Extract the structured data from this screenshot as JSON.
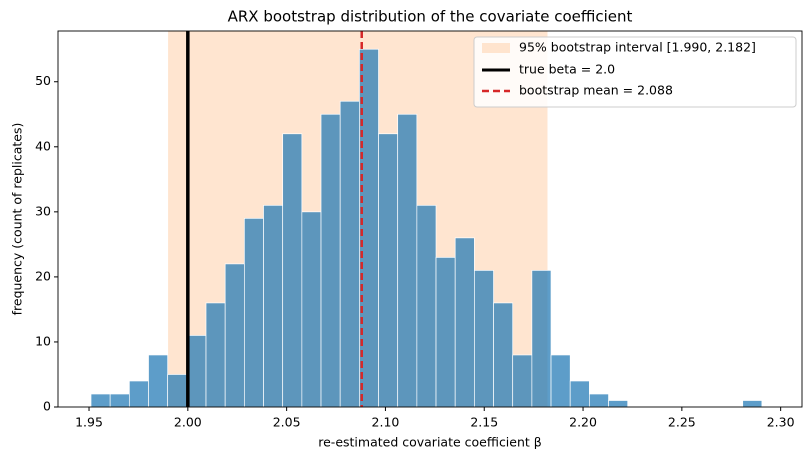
{
  "chart_data": {
    "type": "histogram",
    "title": "ARX bootstrap distribution of the covariate coefficient",
    "xlabel": "re-estimated covariate coefficient  β",
    "ylabel": "frequency (count of replicates)",
    "bins": [
      1.951,
      1.9607,
      1.9704,
      1.9801,
      1.9898,
      1.9995,
      2.0092,
      2.0189,
      2.0286,
      2.0383,
      2.048,
      2.0577,
      2.0674,
      2.0771,
      2.0868,
      2.0965,
      2.1062,
      2.1159,
      2.1256,
      2.1353,
      2.145,
      2.1547,
      2.1644,
      2.1741,
      2.1838,
      2.1935,
      2.2032,
      2.2129,
      2.2226,
      2.2323,
      2.242,
      2.2517,
      2.2614,
      2.2711,
      2.2808,
      2.2905
    ],
    "values": [
      2,
      2,
      4,
      8,
      5,
      11,
      16,
      22,
      29,
      31,
      42,
      30,
      45,
      47,
      55,
      42,
      45,
      31,
      23,
      26,
      21,
      16,
      8,
      21,
      8,
      4,
      2,
      1,
      0,
      0,
      0,
      0,
      0,
      0,
      1
    ],
    "color": "#1f77b4",
    "xlim": [
      1.9343,
      2.3108
    ],
    "ylim": [
      0,
      57.8
    ],
    "xticks": [
      1.95,
      {
        "value": 2.0,
        "label": "2.00"
      },
      2.05,
      {
        "value": 2.1,
        "label": "2.10"
      },
      2.15,
      {
        "value": 2.2,
        "label": "2.20"
      },
      2.25,
      {
        "value": 2.3,
        "label": "2.30"
      }
    ],
    "yticks": [
      0,
      10,
      20,
      30,
      40,
      50
    ],
    "interval": {
      "lo": 1.99,
      "hi": 2.182,
      "color": "#ffdcc0",
      "label": "95% bootstrap interval [1.990, 2.182]"
    },
    "lines": [
      {
        "name": "true beta = 2.0",
        "value": 2.0,
        "color": "#000000",
        "style": "solid"
      },
      {
        "name": "bootstrap mean = 2.088",
        "value": 2.088,
        "color": "#d62728",
        "style": "dashed"
      }
    ],
    "legend": "upper right"
  }
}
